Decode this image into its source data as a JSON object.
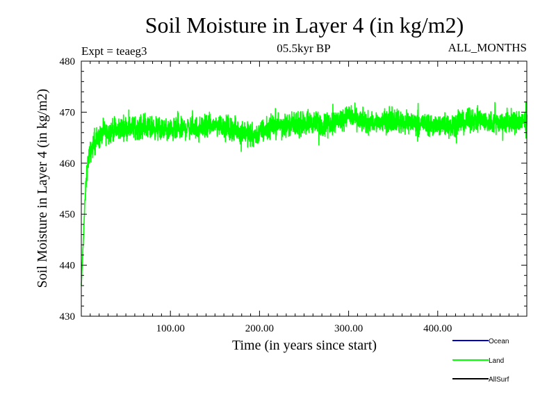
{
  "chart_data": {
    "type": "line",
    "title": "Soil Moisture in Layer 4 (in kg/m2)",
    "subtitle": "05.5kyr BP",
    "experiment": "Expt = teaeg3",
    "period": "ALL_MONTHS",
    "xlabel": "Time (in years since start)",
    "ylabel": "Soil Moisture in Layer 4 (in kg/m2)",
    "xlim": [
      0,
      500
    ],
    "ylim": [
      430,
      480
    ],
    "x_ticks": [
      100,
      200,
      300,
      400
    ],
    "x_tick_labels": [
      "100.00",
      "200.00",
      "300.00",
      "400.00"
    ],
    "y_ticks": [
      430,
      440,
      450,
      460,
      470,
      480
    ],
    "y_tick_labels": [
      "430",
      "440",
      "450",
      "460",
      "470",
      "480"
    ],
    "legend": [
      {
        "name": "Ocean",
        "color": "#0000cc"
      },
      {
        "name": "Land",
        "color": "#00ff00"
      },
      {
        "name": "AllSurf",
        "color": "#000000"
      }
    ],
    "series": [
      {
        "name": "Land",
        "color": "#00ff00",
        "x": [
          0,
          2,
          4,
          6,
          8,
          10,
          12,
          15,
          20,
          25,
          30,
          35,
          40,
          45,
          50,
          55,
          60,
          65,
          70,
          75,
          80,
          85,
          90,
          95,
          100,
          105,
          110,
          115,
          120,
          125,
          130,
          135,
          140,
          145,
          150,
          155,
          160,
          165,
          170,
          175,
          180,
          185,
          190,
          195,
          200,
          205,
          210,
          215,
          220,
          225,
          230,
          235,
          240,
          245,
          250,
          255,
          260,
          265,
          270,
          275,
          280,
          285,
          290,
          295,
          300,
          305,
          310,
          315,
          320,
          325,
          330,
          335,
          340,
          345,
          350,
          355,
          360,
          365,
          370,
          375,
          380,
          385,
          390,
          395,
          400,
          405,
          410,
          415,
          420,
          425,
          430,
          435,
          440,
          445,
          450,
          455,
          460,
          465,
          470,
          475,
          480,
          485,
          490,
          495,
          500
        ],
        "values": [
          436,
          444,
          452,
          458,
          461,
          462,
          463,
          464,
          465,
          466,
          466,
          466.5,
          466.5,
          467,
          467,
          467,
          467,
          467,
          467,
          467,
          467,
          466.8,
          466.7,
          466.5,
          466.5,
          466.5,
          466.5,
          466.8,
          467,
          467,
          467,
          467,
          467,
          467.3,
          467.5,
          467.5,
          467.2,
          467,
          466.8,
          466.5,
          466.3,
          466,
          465.5,
          465.5,
          466,
          466.5,
          467,
          467.3,
          467.5,
          467.5,
          467.5,
          467.5,
          467.5,
          467.5,
          467.8,
          468,
          468,
          467.8,
          467.5,
          467.8,
          468,
          468.3,
          468.5,
          469,
          469.5,
          469,
          468.5,
          468.3,
          468,
          468,
          468,
          468,
          468.3,
          468.5,
          468.5,
          468.3,
          468,
          468,
          468,
          468,
          468,
          467.8,
          467.5,
          467.5,
          467.5,
          467.5,
          467.5,
          467.5,
          467.8,
          468,
          468,
          468.3,
          468.5,
          468.5,
          468.3,
          468,
          468,
          468,
          468,
          468,
          468,
          468,
          468,
          468,
          468
        ],
        "noise_amplitude": 3.2
      }
    ]
  }
}
